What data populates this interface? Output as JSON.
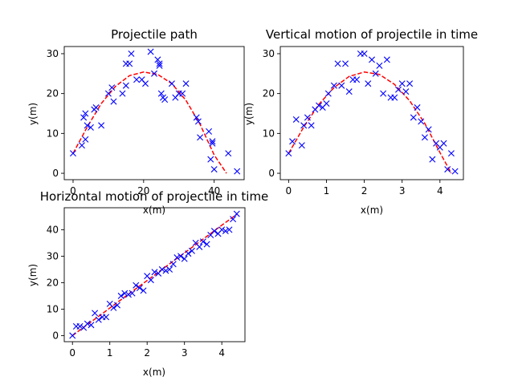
{
  "colors": {
    "marker": "#0000ff",
    "fit": "#ff0000",
    "axes": "#000000",
    "background": "#ffffff"
  },
  "chart_data": [
    {
      "type": "scatter",
      "title": "Projectile path",
      "xlabel": "x(m)",
      "ylabel": "y(m)",
      "xlim": [
        -2.5,
        48.5
      ],
      "ylim": [
        -1.6,
        31.8
      ],
      "xticks": [
        0,
        20,
        40
      ],
      "yticks": [
        0,
        10,
        20,
        30
      ],
      "grid": false,
      "series": [
        {
          "kind": "points",
          "marker": "x",
          "x": [
            0,
            2.5,
            3,
            3.5,
            3.5,
            4,
            5,
            6,
            6.5,
            8,
            10,
            11,
            11.5,
            14,
            15,
            15,
            16,
            16.5,
            18,
            19.5,
            20.5,
            22,
            23,
            24,
            24.5,
            24.5,
            25,
            25.5,
            26,
            28,
            29,
            30,
            31,
            32,
            35,
            35.5,
            36,
            38.5,
            39,
            39.5,
            39.5,
            40,
            44,
            46.5
          ],
          "y": [
            5,
            7,
            14,
            8.5,
            15,
            12,
            11.5,
            16,
            16.5,
            12,
            20,
            21.5,
            18,
            20,
            27.5,
            22,
            27.5,
            30,
            23.5,
            23.5,
            22.5,
            30.5,
            25,
            28.5,
            27.5,
            27,
            20,
            19,
            18.5,
            22.5,
            19,
            20,
            20,
            22.5,
            14,
            13,
            9,
            10.5,
            3.5,
            7.5,
            8,
            1,
            5,
            0.5
          ]
        },
        {
          "kind": "curve",
          "style": "dashed",
          "x": [
            0,
            4,
            8,
            12,
            16,
            20,
            24,
            28,
            32,
            36,
            40,
            43.5
          ],
          "y": [
            5,
            11.6,
            17.5,
            21.8,
            24.5,
            25.4,
            24.8,
            22.5,
            18.3,
            12.3,
            4.6,
            0
          ]
        }
      ]
    },
    {
      "type": "scatter",
      "title": "Vertical motion of projectile in time",
      "xlabel": "x(m)",
      "ylabel": "y(m)",
      "xlim": [
        -0.22,
        4.62
      ],
      "ylim": [
        -1.6,
        31.8
      ],
      "xticks": [
        0,
        1,
        2,
        3,
        4
      ],
      "yticks": [
        0,
        10,
        20,
        30
      ],
      "grid": false,
      "series": [
        {
          "kind": "points",
          "marker": "x",
          "x": [
            0,
            0.1,
            0.2,
            0.35,
            0.4,
            0.5,
            0.6,
            0.7,
            0.8,
            0.9,
            1.0,
            1.05,
            1.2,
            1.3,
            1.4,
            1.5,
            1.6,
            1.7,
            1.8,
            1.9,
            2.0,
            2.1,
            2.2,
            2.3,
            2.4,
            2.5,
            2.6,
            2.7,
            2.8,
            2.9,
            3.0,
            3.1,
            3.2,
            3.3,
            3.4,
            3.5,
            3.6,
            3.7,
            3.8,
            3.9,
            4.0,
            4.1,
            4.2,
            4.3,
            4.4
          ],
          "y": [
            5,
            8,
            13.5,
            7,
            12,
            14,
            12,
            16,
            17,
            16.5,
            17.5,
            20,
            22,
            27.5,
            22,
            27.5,
            20.5,
            23.5,
            23.5,
            30,
            30,
            22.5,
            28.5,
            25,
            27,
            20,
            28.5,
            19,
            19,
            21,
            22.5,
            20.5,
            22.5,
            14,
            16.5,
            13,
            9,
            11,
            3.5,
            7.5,
            6.5,
            7.5,
            1,
            5,
            0.5
          ]
        },
        {
          "kind": "curve",
          "style": "dashed",
          "x": [
            0,
            0.4,
            0.8,
            1.2,
            1.6,
            2.0,
            2.4,
            2.8,
            3.2,
            3.6,
            4.0,
            4.3
          ],
          "y": [
            5,
            11.6,
            17.3,
            21.5,
            24.3,
            25.4,
            24.8,
            22.3,
            18.2,
            12.5,
            5.2,
            0
          ]
        }
      ]
    },
    {
      "type": "scatter",
      "title": "Horizontal motion of projectile in time",
      "xlabel": "x(m)",
      "ylabel": "y(m)",
      "xlim": [
        -0.22,
        4.62
      ],
      "ylim": [
        -2.3,
        48.3
      ],
      "xticks": [
        0,
        1,
        2,
        3,
        4
      ],
      "yticks": [
        0,
        10,
        20,
        30,
        40
      ],
      "grid": false,
      "series": [
        {
          "kind": "points",
          "marker": "x",
          "x": [
            0,
            0.1,
            0.2,
            0.3,
            0.4,
            0.5,
            0.6,
            0.7,
            0.8,
            0.9,
            1.0,
            1.1,
            1.2,
            1.3,
            1.4,
            1.5,
            1.6,
            1.7,
            1.8,
            1.9,
            2.0,
            2.1,
            2.2,
            2.3,
            2.4,
            2.5,
            2.6,
            2.7,
            2.8,
            2.9,
            3.0,
            3.1,
            3.2,
            3.3,
            3.4,
            3.5,
            3.6,
            3.7,
            3.8,
            3.9,
            4.0,
            4.1,
            4.2,
            4.3,
            4.4
          ],
          "y": [
            0,
            3.5,
            3.5,
            3,
            4.5,
            4,
            8.5,
            6,
            7,
            7,
            12,
            10.5,
            11.5,
            15,
            16,
            15.5,
            16,
            19,
            18,
            17,
            22.5,
            21,
            24,
            23.5,
            25,
            24.5,
            25,
            27,
            29.5,
            30,
            29,
            31,
            32,
            35,
            33.5,
            35.5,
            34.5,
            38,
            39.5,
            38.5,
            40,
            39.5,
            40,
            44,
            46
          ]
        },
        {
          "kind": "curve",
          "style": "dashed",
          "x": [
            0,
            0.4,
            0.8,
            1.2,
            1.6,
            2.0,
            2.4,
            2.8,
            3.2,
            3.6,
            4.0,
            4.4
          ],
          "y": [
            0,
            4.2,
            8.3,
            12.5,
            16.7,
            20.8,
            25,
            29.2,
            33.3,
            37.5,
            41.7,
            45.8
          ]
        }
      ]
    }
  ]
}
